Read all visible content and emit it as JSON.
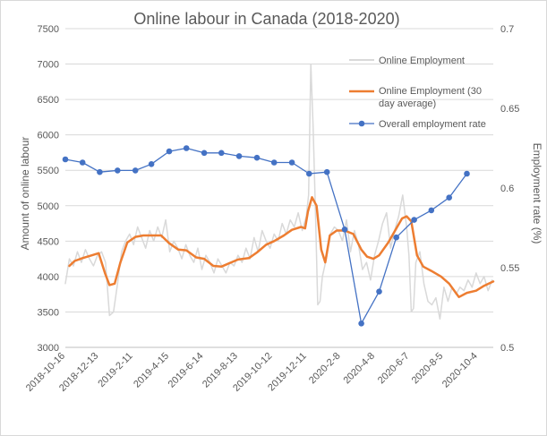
{
  "chart_data": {
    "type": "line",
    "title": "Online labour in Canada (2018-2020)",
    "xlabel": "",
    "ylabel": "Amount of online labour",
    "y2label": "Employment rate (%)",
    "ylim": [
      3000,
      7500
    ],
    "y2lim": [
      0.5,
      0.7
    ],
    "yticks": [
      "3000",
      "3500",
      "4000",
      "4500",
      "5000",
      "5500",
      "6000",
      "6500",
      "7000",
      "7500"
    ],
    "y2ticks": [
      "0.5",
      "0.55",
      "0.6",
      "0.65",
      "0.7"
    ],
    "xticks": [
      "2018-10-16",
      "2018-12-13",
      "2019-2-11",
      "2019-4-15",
      "2019-6-14",
      "2019-8-13",
      "2019-10-12",
      "2019-12-11",
      "2020-2-8",
      "2020-4-8",
      "2020-6-7",
      "2020-8-5",
      "2020-10-4"
    ],
    "xrange": [
      "2018-10-16",
      "2020-10-31"
    ],
    "legend_position": "top-right",
    "grid": "horizontal",
    "series": [
      {
        "name": "Online Employment",
        "axis": "left",
        "color": "#d9d9d9",
        "x": [
          "2018-10-16",
          "2018-10-23",
          "2018-10-30",
          "2018-11-06",
          "2018-11-13",
          "2018-11-20",
          "2018-11-27",
          "2018-12-04",
          "2018-12-11",
          "2018-12-18",
          "2018-12-25",
          "2019-01-01",
          "2019-01-08",
          "2019-01-15",
          "2019-01-22",
          "2019-01-29",
          "2019-02-05",
          "2019-02-12",
          "2019-02-19",
          "2019-02-26",
          "2019-03-05",
          "2019-03-12",
          "2019-03-19",
          "2019-03-26",
          "2019-04-02",
          "2019-04-09",
          "2019-04-16",
          "2019-04-23",
          "2019-04-30",
          "2019-05-07",
          "2019-05-14",
          "2019-05-21",
          "2019-05-28",
          "2019-06-04",
          "2019-06-11",
          "2019-06-18",
          "2019-06-25",
          "2019-07-02",
          "2019-07-09",
          "2019-07-16",
          "2019-07-23",
          "2019-07-30",
          "2019-08-06",
          "2019-08-13",
          "2019-08-20",
          "2019-08-27",
          "2019-09-03",
          "2019-09-10",
          "2019-09-17",
          "2019-09-24",
          "2019-10-01",
          "2019-10-08",
          "2019-10-15",
          "2019-10-22",
          "2019-10-29",
          "2019-11-05",
          "2019-11-12",
          "2019-11-19",
          "2019-11-26",
          "2019-12-03",
          "2019-12-10",
          "2019-12-14",
          "2019-12-18",
          "2019-12-22",
          "2019-12-26",
          "2019-12-30",
          "2020-01-03",
          "2020-01-07",
          "2020-01-14",
          "2020-01-21",
          "2020-01-28",
          "2020-02-04",
          "2020-02-11",
          "2020-02-18",
          "2020-02-25",
          "2020-03-03",
          "2020-03-10",
          "2020-03-17",
          "2020-03-24",
          "2020-03-31",
          "2020-04-07",
          "2020-04-14",
          "2020-04-21",
          "2020-04-28",
          "2020-05-05",
          "2020-05-12",
          "2020-05-19",
          "2020-05-26",
          "2020-06-02",
          "2020-06-06",
          "2020-06-10",
          "2020-06-14",
          "2020-06-18",
          "2020-06-25",
          "2020-07-02",
          "2020-07-09",
          "2020-07-16",
          "2020-07-23",
          "2020-07-30",
          "2020-08-06",
          "2020-08-13",
          "2020-08-20",
          "2020-08-27",
          "2020-09-03",
          "2020-09-10",
          "2020-09-17",
          "2020-09-24",
          "2020-10-01",
          "2020-10-08",
          "2020-10-15",
          "2020-10-22",
          "2020-10-29"
        ],
        "values": [
          3900,
          4250,
          4150,
          4350,
          4200,
          4380,
          4250,
          4150,
          4300,
          4350,
          4200,
          3450,
          3500,
          3900,
          4350,
          4500,
          4600,
          4450,
          4700,
          4550,
          4400,
          4650,
          4500,
          4700,
          4550,
          4800,
          4350,
          4500,
          4400,
          4250,
          4450,
          4300,
          4200,
          4400,
          4100,
          4300,
          4200,
          4050,
          4250,
          4150,
          4050,
          4200,
          4150,
          4300,
          4200,
          4400,
          4250,
          4550,
          4350,
          4650,
          4500,
          4400,
          4600,
          4500,
          4750,
          4600,
          4800,
          4700,
          4900,
          4650,
          4850,
          5150,
          7000,
          6100,
          4900,
          3600,
          3650,
          4000,
          4250,
          4600,
          4700,
          4650,
          4500,
          4800,
          4350,
          4650,
          4450,
          4100,
          4200,
          3950,
          4300,
          4500,
          4750,
          4900,
          4400,
          4650,
          4850,
          5150,
          4700,
          4300,
          3500,
          3550,
          4200,
          4350,
          3900,
          3650,
          3600,
          3700,
          3400,
          3850,
          3650,
          3850,
          3750,
          3850,
          3800,
          3950,
          3850,
          4050,
          3900,
          4000,
          3800,
          3950
        ]
      },
      {
        "name": "Online Employment (30 day average)",
        "axis": "left",
        "color": "#ed7d31",
        "x": [
          "2018-10-23",
          "2018-11-01",
          "2018-11-15",
          "2018-12-01",
          "2018-12-13",
          "2018-12-24",
          "2019-01-01",
          "2019-01-10",
          "2019-01-20",
          "2019-02-01",
          "2019-02-15",
          "2019-03-01",
          "2019-04-01",
          "2019-04-15",
          "2019-05-01",
          "2019-05-15",
          "2019-06-01",
          "2019-06-15",
          "2019-07-01",
          "2019-07-15",
          "2019-08-01",
          "2019-08-13",
          "2019-09-01",
          "2019-09-15",
          "2019-10-01",
          "2019-10-15",
          "2019-11-01",
          "2019-11-15",
          "2019-12-01",
          "2019-12-08",
          "2019-12-13",
          "2019-12-20",
          "2019-12-28",
          "2020-01-05",
          "2020-01-12",
          "2020-01-20",
          "2020-02-01",
          "2020-02-15",
          "2020-03-01",
          "2020-03-15",
          "2020-03-25",
          "2020-04-05",
          "2020-04-15",
          "2020-05-01",
          "2020-05-15",
          "2020-05-25",
          "2020-06-02",
          "2020-06-10",
          "2020-06-20",
          "2020-07-01",
          "2020-07-15",
          "2020-08-01",
          "2020-08-15",
          "2020-09-01",
          "2020-09-15",
          "2020-10-01",
          "2020-10-15",
          "2020-10-31"
        ],
        "values": [
          4150,
          4220,
          4260,
          4300,
          4330,
          4050,
          3880,
          3900,
          4200,
          4480,
          4560,
          4580,
          4580,
          4470,
          4380,
          4370,
          4270,
          4250,
          4150,
          4140,
          4200,
          4240,
          4260,
          4340,
          4450,
          4500,
          4580,
          4660,
          4700,
          4680,
          4920,
          5120,
          5000,
          4380,
          4200,
          4580,
          4650,
          4650,
          4600,
          4380,
          4280,
          4250,
          4300,
          4480,
          4680,
          4820,
          4850,
          4780,
          4300,
          4140,
          4080,
          4000,
          3900,
          3710,
          3770,
          3800,
          3870,
          3930
        ]
      },
      {
        "name": "Overall employment rate",
        "axis": "right",
        "color": "#4472c4",
        "x": [
          "2018-10-16",
          "2018-11-15",
          "2018-12-15",
          "2019-01-15",
          "2019-02-15",
          "2019-03-15",
          "2019-04-15",
          "2019-05-15",
          "2019-06-15",
          "2019-07-15",
          "2019-08-15",
          "2019-09-15",
          "2019-10-15",
          "2019-11-15",
          "2019-12-15",
          "2020-01-15",
          "2020-02-15",
          "2020-03-15",
          "2020-04-15",
          "2020-05-15",
          "2020-06-15",
          "2020-07-15",
          "2020-08-15",
          "2020-09-15"
        ],
        "values": [
          0.618,
          0.616,
          0.61,
          0.611,
          0.611,
          0.615,
          0.623,
          0.625,
          0.622,
          0.622,
          0.62,
          0.619,
          0.616,
          0.616,
          0.609,
          0.61,
          0.574,
          0.515,
          0.535,
          0.569,
          0.58,
          0.586,
          0.594,
          0.609
        ]
      }
    ]
  }
}
